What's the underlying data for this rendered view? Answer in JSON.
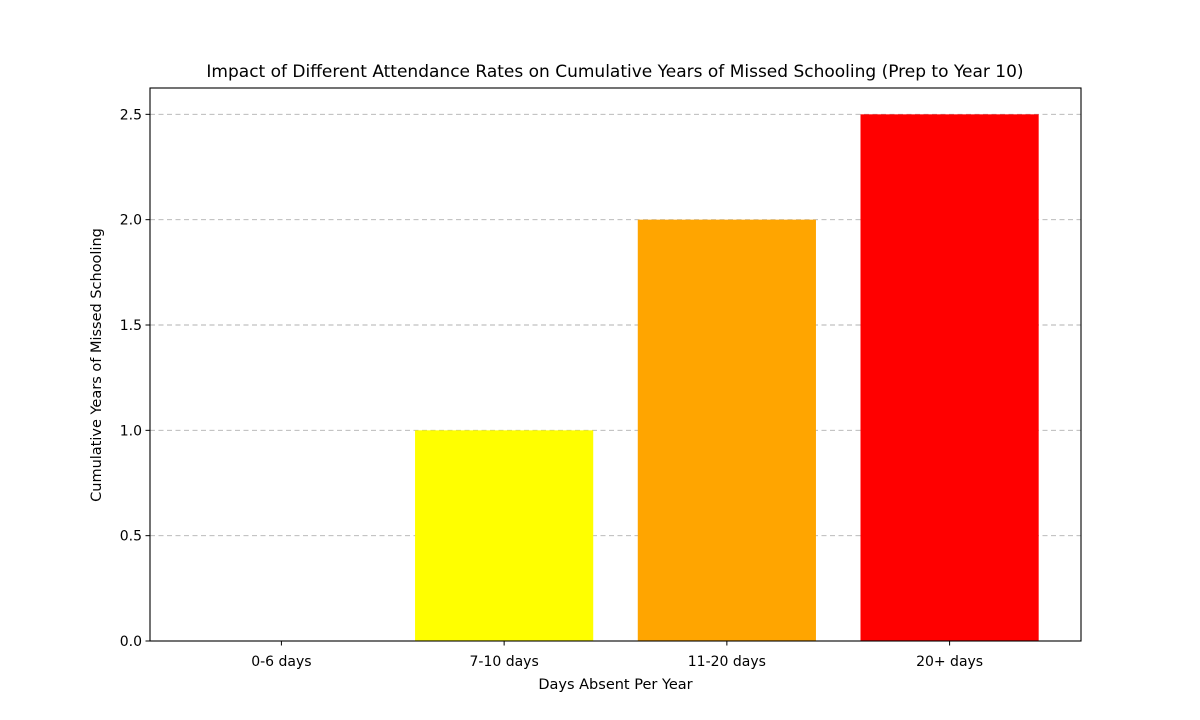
{
  "chart_data": {
    "type": "bar",
    "title": "Impact of Different Attendance Rates on Cumulative Years of Missed Schooling (Prep to Year 10)",
    "xlabel": "Days Absent Per Year",
    "ylabel": "Cumulative Years of Missed Schooling",
    "categories": [
      "0-6 days",
      "7-10 days",
      "11-20 days",
      "20+ days"
    ],
    "values": [
      0,
      1,
      2,
      2.5
    ],
    "colors": [
      "#008000",
      "#ffff00",
      "#ffa500",
      "#ff0000"
    ],
    "ylim": [
      0,
      2.625
    ],
    "yticks": [
      0.0,
      0.5,
      1.0,
      1.5,
      2.0,
      2.5
    ],
    "ytick_labels": [
      "0.0",
      "0.5",
      "1.0",
      "1.5",
      "2.0",
      "2.5"
    ],
    "grid": "y-dashed",
    "legend": "none"
  }
}
